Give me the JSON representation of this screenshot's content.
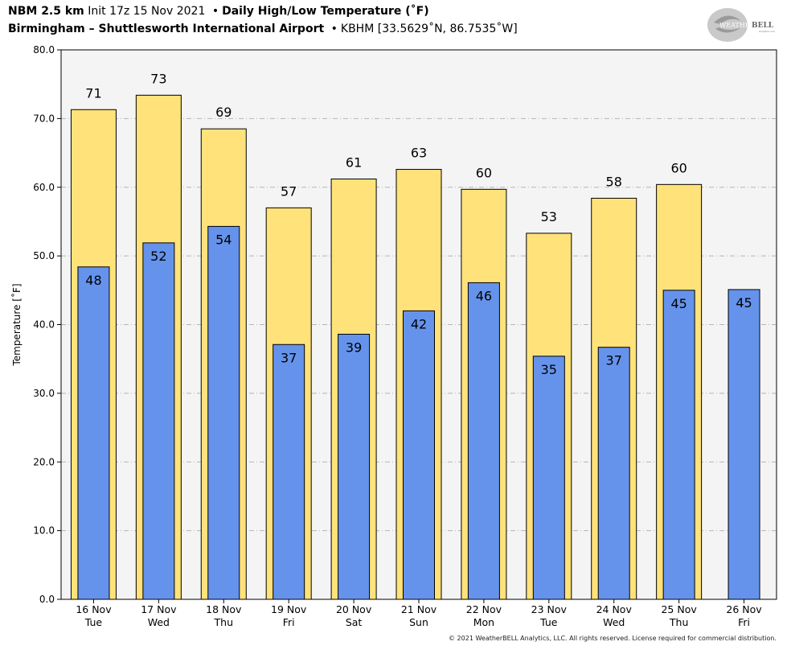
{
  "header": {
    "model": "NBM 2.5 km",
    "init": "Init 17z 15 Nov 2021",
    "bullet": "•",
    "product": "Daily High/Low Temperature (˚F)",
    "station_name": "Birmingham – Shuttlesworth International Airport",
    "station_info": "KBHM [33.5629˚N, 86.7535˚W]"
  },
  "logo": {
    "text_main": "WEATHER",
    "text_bell": "BELL",
    "text_sub": "Analytics LLC"
  },
  "copyright": "© 2021 WeatherBELL Analytics, LLC. All rights reserved. License required for commercial distribution.",
  "chart_data": {
    "type": "bar",
    "ylabel": "Temperature [˚F]",
    "ylim": [
      0,
      80
    ],
    "yticks": [
      "0.0",
      "10.0",
      "20.0",
      "30.0",
      "40.0",
      "50.0",
      "60.0",
      "70.0",
      "80.0"
    ],
    "grid": true,
    "categories": [
      "16 Nov",
      "17 Nov",
      "18 Nov",
      "19 Nov",
      "20 Nov",
      "21 Nov",
      "22 Nov",
      "23 Nov",
      "24 Nov",
      "25 Nov",
      "26 Nov"
    ],
    "weekdays": [
      "Tue",
      "Wed",
      "Thu",
      "Fri",
      "Sat",
      "Sun",
      "Mon",
      "Tue",
      "Wed",
      "Thu",
      "Fri"
    ],
    "series": [
      {
        "name": "High",
        "values": [
          71.3,
          73.4,
          68.5,
          57.0,
          61.2,
          62.6,
          59.7,
          53.3,
          58.4,
          60.4,
          null
        ],
        "labels": [
          "71",
          "73",
          "69",
          "57",
          "61",
          "63",
          "60",
          "53",
          "58",
          "60",
          ""
        ],
        "color": "#ffe27a"
      },
      {
        "name": "Low",
        "values": [
          48.4,
          51.9,
          54.3,
          37.1,
          38.6,
          42.0,
          46.1,
          35.4,
          36.7,
          45.0,
          45.1
        ],
        "labels": [
          "48",
          "52",
          "54",
          "37",
          "39",
          "42",
          "46",
          "35",
          "37",
          "45",
          "45"
        ],
        "color": "#6593ec"
      }
    ],
    "plot_background": "#f4f4f4"
  }
}
